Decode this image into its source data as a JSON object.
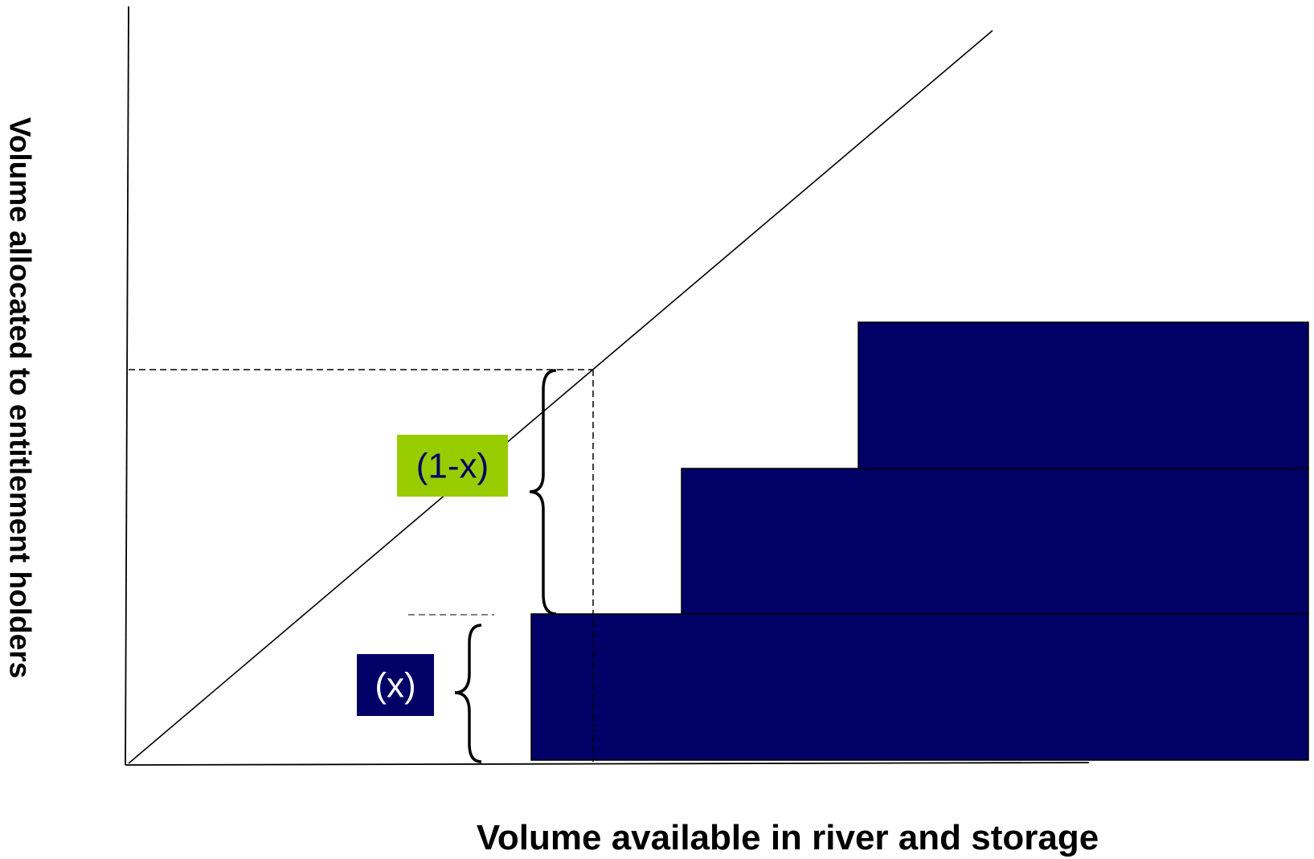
{
  "x_axis_label": "Volume available in river and storage",
  "y_axis_label": "Volume allocated to entitlement holders",
  "label_upper": "(1-x)",
  "label_lower": "(x)",
  "colors": {
    "block_fill": "#000066",
    "label_upper_bg": "#99CC00",
    "label_upper_text": "#000066",
    "label_lower_bg": "#000066",
    "label_lower_text": "#ffffff",
    "line": "#000000",
    "dashed_line": "#000000",
    "dashed_line_grey": "#808080"
  }
}
